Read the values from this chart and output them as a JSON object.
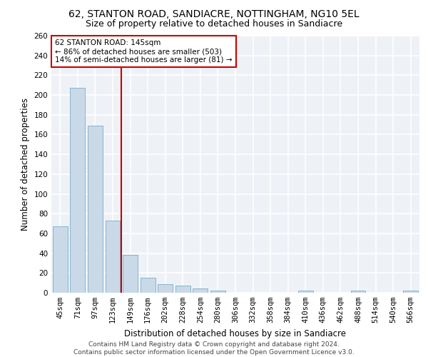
{
  "title1": "62, STANTON ROAD, SANDIACRE, NOTTINGHAM, NG10 5EL",
  "title2": "Size of property relative to detached houses in Sandiacre",
  "xlabel": "Distribution of detached houses by size in Sandiacre",
  "ylabel": "Number of detached properties",
  "categories": [
    "45sqm",
    "71sqm",
    "97sqm",
    "123sqm",
    "149sqm",
    "176sqm",
    "202sqm",
    "228sqm",
    "254sqm",
    "280sqm",
    "306sqm",
    "332sqm",
    "358sqm",
    "384sqm",
    "410sqm",
    "436sqm",
    "462sqm",
    "488sqm",
    "514sqm",
    "540sqm",
    "566sqm"
  ],
  "values": [
    67,
    207,
    169,
    73,
    38,
    15,
    9,
    7,
    4,
    2,
    0,
    0,
    0,
    0,
    2,
    0,
    0,
    2,
    0,
    0,
    2
  ],
  "bar_color": "#c9d9e8",
  "bar_edge_color": "#7aaBc8",
  "vline_color": "#cc0000",
  "annotation_text": "62 STANTON ROAD: 145sqm\n← 86% of detached houses are smaller (503)\n14% of semi-detached houses are larger (81) →",
  "annotation_box_color": "#cc0000",
  "ylim": [
    0,
    260
  ],
  "yticks": [
    0,
    20,
    40,
    60,
    80,
    100,
    120,
    140,
    160,
    180,
    200,
    220,
    240,
    260
  ],
  "background_color": "#eef2f7",
  "grid_color": "#ffffff",
  "footer_text": "Contains HM Land Registry data © Crown copyright and database right 2024.\nContains public sector information licensed under the Open Government Licence v3.0.",
  "title1_fontsize": 10,
  "title2_fontsize": 9,
  "xlabel_fontsize": 8.5,
  "ylabel_fontsize": 8.5,
  "tick_fontsize": 7.5,
  "footer_fontsize": 6.5
}
